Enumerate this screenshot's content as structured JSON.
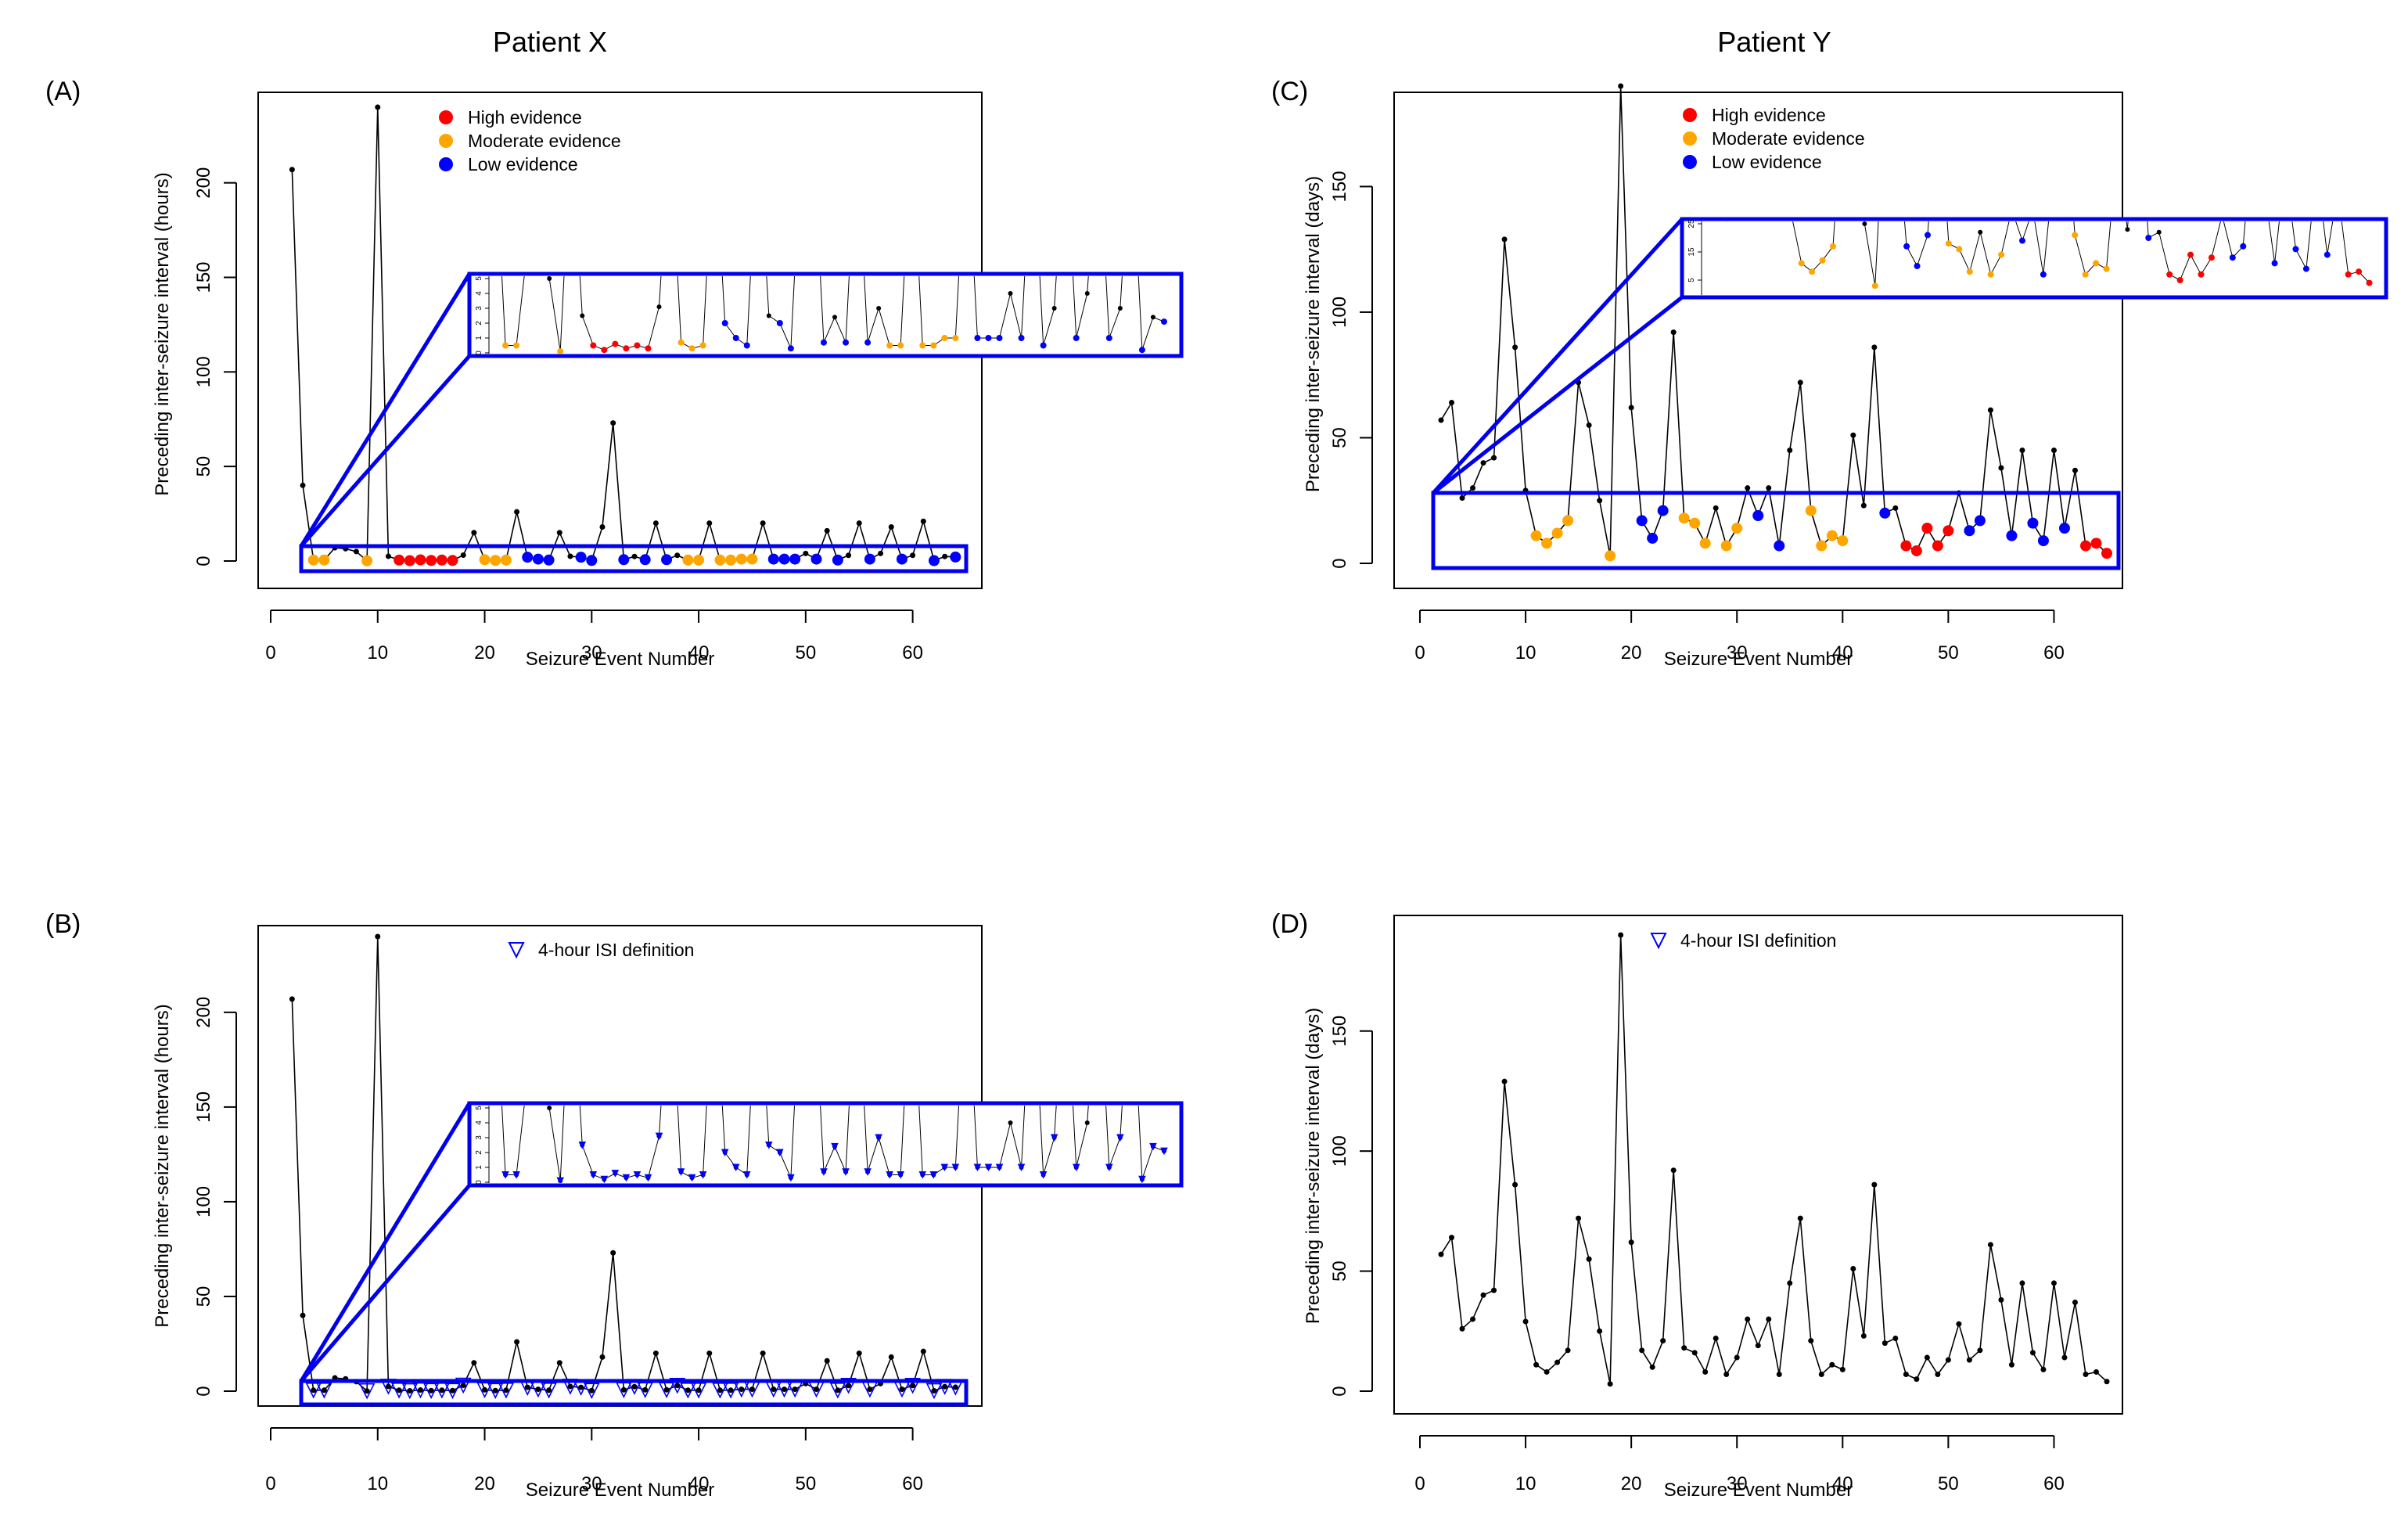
{
  "figure": {
    "titles": [
      "Patient X",
      "Patient Y"
    ],
    "panel_labels": [
      "(A)",
      "(B)",
      "(C)",
      "(D)"
    ]
  },
  "colors": {
    "high": "#ff0000",
    "moderate": "#ffa500",
    "low": "#0000ff",
    "line": "#000000",
    "zoom_box": "#0000ee"
  },
  "chart_data": [
    {
      "id": "A",
      "type": "line",
      "title": "Patient X",
      "panel": "(A)",
      "xlabel": "Seizure Event Number",
      "ylabel": "Preceding inter-seizure interval (hours)",
      "xlim": [
        0,
        65
      ],
      "ylim": [
        0,
        240
      ],
      "xticks": [
        0,
        10,
        20,
        30,
        40,
        50,
        60
      ],
      "yticks": [
        0,
        50,
        100,
        150,
        200
      ],
      "legend": [
        {
          "label": "High evidence",
          "key": "high"
        },
        {
          "label": "Moderate evidence",
          "key": "moderate"
        },
        {
          "label": "Low evidence",
          "key": "low"
        }
      ],
      "legend_position": "top-center",
      "inset": {
        "ylim": [
          0,
          5
        ],
        "yticks": [
          0,
          1,
          2,
          3,
          4,
          5
        ],
        "region_x": [
          2.5,
          65
        ],
        "region_y": [
          0,
          5
        ]
      },
      "x": [
        2,
        3,
        4,
        5,
        6,
        7,
        8,
        9,
        10,
        11,
        12,
        13,
        14,
        15,
        16,
        17,
        18,
        19,
        20,
        21,
        22,
        23,
        24,
        25,
        26,
        27,
        28,
        29,
        30,
        31,
        32,
        33,
        34,
        35,
        36,
        37,
        38,
        39,
        40,
        41,
        42,
        43,
        44,
        45,
        46,
        47,
        48,
        49,
        50,
        51,
        52,
        53,
        54,
        55,
        56,
        57,
        58,
        59,
        60,
        61,
        62,
        63,
        64
      ],
      "y": [
        207,
        40,
        0.5,
        0.5,
        7,
        6.5,
        5,
        0.1,
        240,
        2.5,
        0.5,
        0.2,
        0.6,
        0.3,
        0.5,
        0.3,
        3.1,
        15,
        0.7,
        0.3,
        0.5,
        26,
        2,
        1,
        0.5,
        15,
        2.5,
        2,
        0.3,
        18,
        73,
        0.7,
        2.4,
        0.7,
        20,
        0.7,
        3,
        0.5,
        0.5,
        20,
        0.5,
        0.5,
        1,
        1,
        20,
        1,
        1,
        1,
        4,
        1,
        16,
        0.5,
        3,
        20,
        1,
        4,
        18,
        1,
        3,
        21,
        0.2,
        2.4,
        2.1
      ],
      "evidence": [
        "none",
        "none",
        "moderate",
        "moderate",
        "none",
        "none",
        "none",
        "moderate",
        "none",
        "none",
        "high",
        "high",
        "high",
        "high",
        "high",
        "high",
        "none",
        "none",
        "moderate",
        "moderate",
        "moderate",
        "none",
        "low",
        "low",
        "low",
        "none",
        "none",
        "low",
        "low",
        "none",
        "none",
        "low",
        "none",
        "low",
        "none",
        "low",
        "none",
        "moderate",
        "moderate",
        "none",
        "moderate",
        "moderate",
        "moderate",
        "moderate",
        "none",
        "low",
        "low",
        "low",
        "none",
        "low",
        "none",
        "low",
        "none",
        "none",
        "low",
        "none",
        "none",
        "low",
        "none",
        "none",
        "low",
        "none",
        "low"
      ]
    },
    {
      "id": "B",
      "type": "line",
      "panel": "(B)",
      "xlabel": "Seizure Event Number",
      "ylabel": "Preceding inter-seizure interval (hours)",
      "xlim": [
        0,
        65
      ],
      "ylim": [
        0,
        240
      ],
      "xticks": [
        0,
        10,
        20,
        30,
        40,
        50,
        60
      ],
      "yticks": [
        0,
        50,
        100,
        150,
        200
      ],
      "legend": [
        {
          "label": "4-hour ISI definition",
          "marker": "triangle-down"
        }
      ],
      "legend_position": "top-center",
      "inset": {
        "ylim": [
          0,
          5
        ],
        "yticks": [
          0,
          1,
          2,
          3,
          4,
          5
        ],
        "region_x": [
          2.5,
          65
        ],
        "region_y": [
          0,
          5
        ]
      },
      "isi_threshold_hours": 4,
      "x": [
        2,
        3,
        4,
        5,
        6,
        7,
        8,
        9,
        10,
        11,
        12,
        13,
        14,
        15,
        16,
        17,
        18,
        19,
        20,
        21,
        22,
        23,
        24,
        25,
        26,
        27,
        28,
        29,
        30,
        31,
        32,
        33,
        34,
        35,
        36,
        37,
        38,
        39,
        40,
        41,
        42,
        43,
        44,
        45,
        46,
        47,
        48,
        49,
        50,
        51,
        52,
        53,
        54,
        55,
        56,
        57,
        58,
        59,
        60,
        61,
        62,
        63,
        64
      ],
      "y": [
        207,
        40,
        0.5,
        0.5,
        7,
        6.5,
        5,
        0.1,
        240,
        2.5,
        0.5,
        0.2,
        0.6,
        0.3,
        0.5,
        0.3,
        3.1,
        15,
        0.7,
        0.3,
        0.5,
        26,
        2,
        1,
        0.5,
        15,
        2.5,
        2,
        0.3,
        18,
        73,
        0.7,
        2.4,
        0.7,
        20,
        0.7,
        3,
        0.5,
        0.5,
        20,
        0.5,
        0.5,
        1,
        1,
        20,
        1,
        1,
        1,
        4,
        1,
        16,
        0.5,
        3,
        20,
        1,
        4,
        18,
        1,
        3,
        21,
        0.2,
        2.4,
        2.1
      ]
    },
    {
      "id": "C",
      "type": "line",
      "title": "Patient Y",
      "panel": "(C)",
      "xlabel": "Seizure Event Number",
      "ylabel": "Preceding inter-seizure interval (days)",
      "xlim": [
        0,
        65
      ],
      "ylim": [
        0,
        190
      ],
      "xticks": [
        0,
        10,
        20,
        30,
        40,
        50,
        60
      ],
      "yticks": [
        0,
        50,
        100,
        150
      ],
      "legend": [
        {
          "label": "High evidence",
          "key": "high"
        },
        {
          "label": "Moderate evidence",
          "key": "moderate"
        },
        {
          "label": "Low evidence",
          "key": "low"
        }
      ],
      "legend_position": "top-center",
      "inset": {
        "ylim": [
          0,
          25
        ],
        "yticks": [
          5,
          15,
          25
        ],
        "region_x": [
          1.5,
          66
        ],
        "region_y": [
          0,
          25
        ]
      },
      "x": [
        2,
        3,
        4,
        5,
        6,
        7,
        8,
        9,
        10,
        11,
        12,
        13,
        14,
        15,
        16,
        17,
        18,
        19,
        20,
        21,
        22,
        23,
        24,
        25,
        26,
        27,
        28,
        29,
        30,
        31,
        32,
        33,
        34,
        35,
        36,
        37,
        38,
        39,
        40,
        41,
        42,
        43,
        44,
        45,
        46,
        47,
        48,
        49,
        50,
        51,
        52,
        53,
        54,
        55,
        56,
        57,
        58,
        59,
        60,
        61,
        62,
        63,
        64,
        65
      ],
      "y": [
        57,
        64,
        26,
        30,
        40,
        42,
        129,
        86,
        29,
        11,
        8,
        12,
        17,
        72,
        55,
        25,
        3,
        190,
        62,
        17,
        10,
        21,
        92,
        18,
        16,
        8,
        22,
        7,
        14,
        30,
        19,
        30,
        7,
        45,
        72,
        21,
        7,
        11,
        9,
        51,
        23,
        86,
        20,
        22,
        7,
        5,
        14,
        7,
        13,
        28,
        13,
        17,
        61,
        38,
        11,
        45,
        16,
        9,
        45,
        14,
        37,
        7,
        8,
        4
      ],
      "evidence": [
        "none",
        "none",
        "none",
        "none",
        "none",
        "none",
        "none",
        "none",
        "none",
        "moderate",
        "moderate",
        "moderate",
        "moderate",
        "none",
        "none",
        "none",
        "moderate",
        "none",
        "none",
        "low",
        "low",
        "low",
        "none",
        "moderate",
        "moderate",
        "moderate",
        "none",
        "moderate",
        "moderate",
        "none",
        "low",
        "none",
        "low",
        "none",
        "none",
        "moderate",
        "moderate",
        "moderate",
        "moderate",
        "none",
        "none",
        "none",
        "low",
        "none",
        "high",
        "high",
        "high",
        "high",
        "high",
        "none",
        "low",
        "low",
        "none",
        "none",
        "low",
        "none",
        "low",
        "low",
        "none",
        "low",
        "none",
        "high",
        "high",
        "high"
      ]
    },
    {
      "id": "D",
      "type": "line",
      "panel": "(D)",
      "xlabel": "Seizure Event Number",
      "ylabel": "Preceding inter-seizure interval (days)",
      "xlim": [
        0,
        65
      ],
      "ylim": [
        0,
        190
      ],
      "xticks": [
        0,
        10,
        20,
        30,
        40,
        50,
        60
      ],
      "yticks": [
        0,
        50,
        100,
        150
      ],
      "legend": [
        {
          "label": "4-hour ISI definition",
          "marker": "triangle-down"
        }
      ],
      "legend_position": "top-center",
      "x": [
        2,
        3,
        4,
        5,
        6,
        7,
        8,
        9,
        10,
        11,
        12,
        13,
        14,
        15,
        16,
        17,
        18,
        19,
        20,
        21,
        22,
        23,
        24,
        25,
        26,
        27,
        28,
        29,
        30,
        31,
        32,
        33,
        34,
        35,
        36,
        37,
        38,
        39,
        40,
        41,
        42,
        43,
        44,
        45,
        46,
        47,
        48,
        49,
        50,
        51,
        52,
        53,
        54,
        55,
        56,
        57,
        58,
        59,
        60,
        61,
        62,
        63,
        64,
        65
      ],
      "y": [
        57,
        64,
        26,
        30,
        40,
        42,
        129,
        86,
        29,
        11,
        8,
        12,
        17,
        72,
        55,
        25,
        3,
        190,
        62,
        17,
        10,
        21,
        92,
        18,
        16,
        8,
        22,
        7,
        14,
        30,
        19,
        30,
        7,
        45,
        72,
        21,
        7,
        11,
        9,
        51,
        23,
        86,
        20,
        22,
        7,
        5,
        14,
        7,
        13,
        28,
        13,
        17,
        61,
        38,
        11,
        45,
        16,
        9,
        45,
        14,
        37,
        7,
        8,
        4
      ]
    }
  ]
}
